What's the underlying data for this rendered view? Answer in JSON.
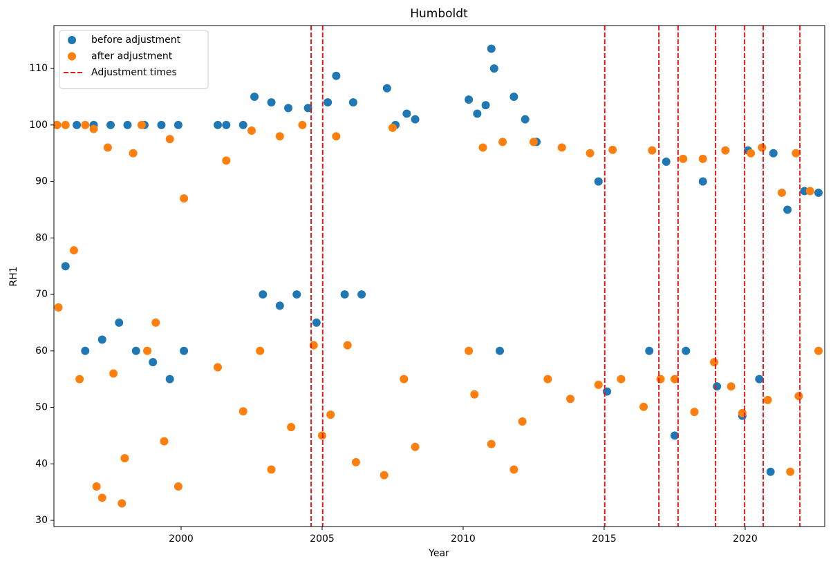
{
  "chart_data": {
    "type": "scatter",
    "title": "Humboldt",
    "x_label": "Year",
    "y_label": "RH1",
    "xlim": [
      1995.49,
      2022.82
    ],
    "ylim": [
      28.9,
      117.6
    ],
    "xticks": [
      2000,
      2005,
      2010,
      2015,
      2020
    ],
    "yticks": [
      30,
      40,
      50,
      60,
      70,
      80,
      90,
      100,
      110
    ],
    "legend": "upper left",
    "series": [
      {
        "name": "before adjustment",
        "color": "#1f77b4",
        "x": [
          1995.6,
          1995.9,
          1996.3,
          1996.6,
          1996.9,
          1997.2,
          1997.5,
          1997.8,
          1998.1,
          1998.4,
          1998.7,
          1999.0,
          1999.3,
          1999.6,
          1999.9,
          2000.1,
          2001.3,
          2001.6,
          2002.2,
          2002.6,
          2002.9,
          2003.2,
          2003.5,
          2003.8,
          2004.1,
          2004.5,
          2004.8,
          2005.2,
          2005.5,
          2005.8,
          2006.1,
          2006.4,
          2007.3,
          2007.6,
          2008.0,
          2008.3,
          2010.2,
          2010.5,
          2010.8,
          2011.0,
          2011.1,
          2011.3,
          2011.8,
          2012.2,
          2012.6,
          2014.8,
          2015.1,
          2016.6,
          2017.2,
          2017.5,
          2017.9,
          2018.5,
          2019.0,
          2019.9,
          2020.1,
          2020.5,
          2020.9,
          2021.0,
          2021.5,
          2022.1,
          2022.6
        ],
        "values": [
          100,
          75,
          100,
          60,
          100,
          62,
          100,
          65,
          100,
          60,
          100,
          58,
          100,
          55,
          100,
          60,
          100,
          100,
          100,
          105,
          70,
          104,
          68,
          103,
          70,
          103,
          65,
          104,
          108.7,
          70,
          104,
          70,
          106.5,
          100,
          102,
          101,
          104.5,
          102,
          103.5,
          113.5,
          110,
          60,
          105,
          101,
          97,
          90,
          52.8,
          60,
          93.5,
          45,
          60,
          90,
          53.7,
          48.5,
          95.5,
          55,
          38.6,
          95,
          85,
          88.3,
          88
        ]
      },
      {
        "name": "after adjustment",
        "color": "#ff7f0e",
        "x": [
          1995.6,
          1995.65,
          1995.9,
          1996.2,
          1996.4,
          1996.6,
          1996.9,
          1997.0,
          1997.2,
          1997.4,
          1997.6,
          1997.9,
          1998.0,
          1998.3,
          1998.6,
          1998.8,
          1999.1,
          1999.4,
          1999.6,
          1999.9,
          2000.1,
          2001.3,
          2001.6,
          2002.2,
          2002.5,
          2002.8,
          2003.2,
          2003.5,
          2003.9,
          2004.3,
          2004.7,
          2005.0,
          2005.3,
          2005.5,
          2005.9,
          2006.2,
          2007.2,
          2007.5,
          2007.9,
          2008.3,
          2010.2,
          2010.4,
          2010.7,
          2011.0,
          2011.4,
          2011.8,
          2012.1,
          2012.5,
          2013.0,
          2013.5,
          2013.8,
          2014.5,
          2014.8,
          2015.3,
          2015.6,
          2016.4,
          2016.7,
          2017.0,
          2017.5,
          2017.8,
          2018.2,
          2018.5,
          2018.9,
          2019.3,
          2019.5,
          2019.9,
          2020.2,
          2020.6,
          2020.8,
          2021.3,
          2021.6,
          2021.8,
          2021.9,
          2022.3,
          2022.6
        ],
        "values": [
          100,
          67.7,
          100,
          77.8,
          55,
          100,
          99.3,
          36,
          34,
          96,
          56,
          33,
          41,
          95,
          100,
          60,
          65,
          44,
          97.5,
          36,
          87,
          57.1,
          93.7,
          49.3,
          99,
          60,
          39,
          98,
          46.5,
          100,
          61,
          45,
          48.7,
          98,
          61,
          40.3,
          38,
          99.5,
          55,
          43,
          60,
          52.3,
          96,
          43.5,
          97,
          39,
          47.5,
          97,
          55,
          96,
          51.5,
          95,
          54,
          95.6,
          55,
          50.1,
          95.5,
          55,
          55,
          94,
          49.2,
          94,
          58,
          95.5,
          53.7,
          49,
          95,
          96,
          51.3,
          88,
          38.6,
          95,
          52,
          88.3,
          60
        ]
      }
    ],
    "vlines": {
      "name": "Adjustment times",
      "color": "#e31a1c",
      "x": [
        2004.61,
        2005.02,
        2015.02,
        2016.94,
        2017.62,
        2018.95,
        2019.98,
        2020.64,
        2021.94
      ]
    }
  }
}
